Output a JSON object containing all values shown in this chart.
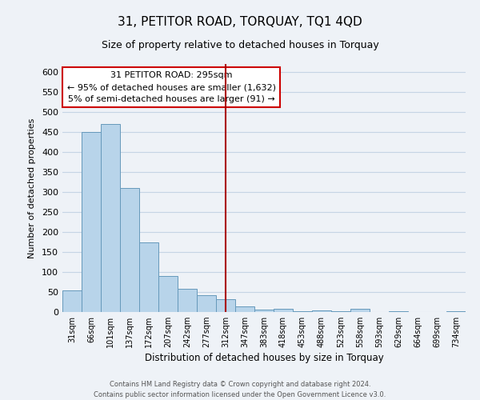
{
  "title": "31, PETITOR ROAD, TORQUAY, TQ1 4QD",
  "subtitle": "Size of property relative to detached houses in Torquay",
  "xlabel": "Distribution of detached houses by size in Torquay",
  "ylabel": "Number of detached properties",
  "bin_labels": [
    "31sqm",
    "66sqm",
    "101sqm",
    "137sqm",
    "172sqm",
    "207sqm",
    "242sqm",
    "277sqm",
    "312sqm",
    "347sqm",
    "383sqm",
    "418sqm",
    "453sqm",
    "488sqm",
    "523sqm",
    "558sqm",
    "593sqm",
    "629sqm",
    "664sqm",
    "699sqm",
    "734sqm"
  ],
  "bar_values": [
    55,
    450,
    470,
    310,
    175,
    90,
    58,
    42,
    32,
    15,
    7,
    8,
    3,
    5,
    3,
    8,
    0,
    2,
    0,
    0,
    2
  ],
  "bar_color": "#b8d4ea",
  "bar_edge_color": "#6699bb",
  "ylim": [
    0,
    620
  ],
  "yticks": [
    0,
    50,
    100,
    150,
    200,
    250,
    300,
    350,
    400,
    450,
    500,
    550,
    600
  ],
  "vline_x": 8.0,
  "vline_color": "#aa0000",
  "annotation_title": "31 PETITOR ROAD: 295sqm",
  "annotation_line1": "← 95% of detached houses are smaller (1,632)",
  "annotation_line2": "5% of semi-detached houses are larger (91) →",
  "annotation_box_facecolor": "#ffffff",
  "annotation_box_edgecolor": "#cc0000",
  "footer1": "Contains HM Land Registry data © Crown copyright and database right 2024.",
  "footer2": "Contains public sector information licensed under the Open Government Licence v3.0.",
  "bg_color": "#eef2f7",
  "grid_color": "#c5d5e5"
}
